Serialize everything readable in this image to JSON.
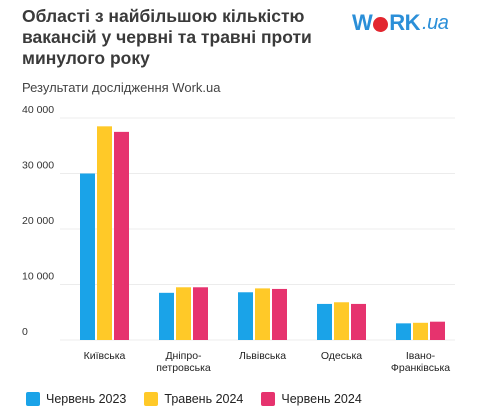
{
  "header": {
    "title": "Області з найбільшою кількістю вакансій у червні та травні проти минулого року",
    "subtitle": "Результати дослідження Work.ua",
    "logo_left": "W",
    "logo_right": "RK",
    "logo_suffix": ".ua"
  },
  "chart_data": {
    "type": "bar",
    "categories": [
      "Київська",
      "Дніпро-петровська",
      "Львівська",
      "Одеська",
      "Івано-Франківська"
    ],
    "category_lines": [
      [
        "Київська"
      ],
      [
        "Дніпро-",
        "петровська"
      ],
      [
        "Львівська"
      ],
      [
        "Одеська"
      ],
      [
        "Івано-",
        "Франківська"
      ]
    ],
    "series": [
      {
        "name": "Червень 2023",
        "color": "#1aa3e8",
        "values": [
          30000,
          8500,
          8600,
          6500,
          3000
        ]
      },
      {
        "name": "Травень 2024",
        "color": "#ffc928",
        "values": [
          38500,
          9500,
          9300,
          6800,
          3100
        ]
      },
      {
        "name": "Червень 2024",
        "color": "#e6336e",
        "values": [
          37500,
          9500,
          9200,
          6500,
          3300
        ]
      }
    ],
    "ylim": [
      0,
      40000
    ],
    "yticks": [
      0,
      10000,
      20000,
      30000,
      40000
    ],
    "ytick_labels": [
      "0",
      "10 000",
      "20 000",
      "30 000",
      "40 000"
    ],
    "grid": true,
    "legend_position": "bottom"
  }
}
